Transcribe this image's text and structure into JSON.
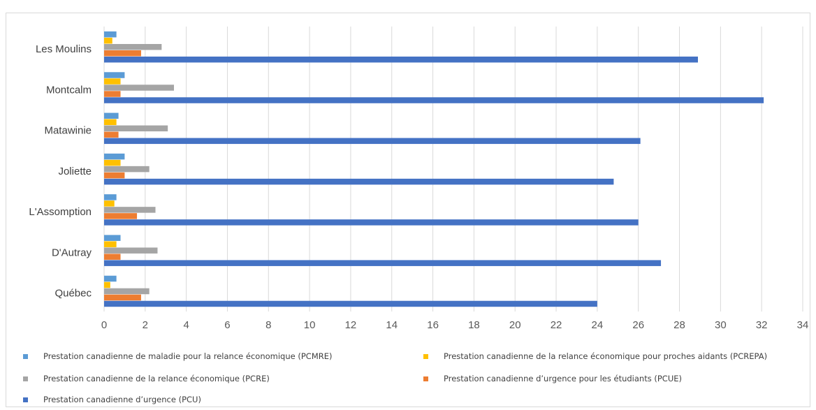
{
  "chart_data": {
    "type": "bar",
    "orientation": "horizontal",
    "title": "",
    "categories": [
      "Québec",
      "D'Autray",
      "L'Assomption",
      "Joliette",
      "Matawinie",
      "Montcalm",
      "Les Moulins"
    ],
    "xlim": [
      0,
      34
    ],
    "xticks": [
      "0",
      "2",
      "4",
      "6",
      "8",
      "10",
      "12",
      "14",
      "16",
      "18",
      "20",
      "22",
      "24",
      "26",
      "28",
      "30",
      "32",
      "34"
    ],
    "grid": "vertical",
    "legend_position": "bottom",
    "series": [
      {
        "name": "Prestation canadienne de maladie pour la relance économique (PCMRE)",
        "color": "#5b9bd5",
        "values": [
          0.6,
          0.8,
          0.6,
          1.0,
          0.7,
          1.0,
          0.6
        ]
      },
      {
        "name": "Prestation canadienne de la relance économique pour proches aidants (PCREPA)",
        "color": "#ffc000",
        "values": [
          0.3,
          0.6,
          0.5,
          0.8,
          0.6,
          0.8,
          0.4
        ]
      },
      {
        "name": "Prestation canadienne de la relance économique (PCRE)",
        "color": "#a5a5a5",
        "values": [
          2.2,
          2.6,
          2.5,
          2.2,
          3.1,
          3.4,
          2.8
        ]
      },
      {
        "name": "Prestation canadienne d’urgence pour les étudiants (PCUE)",
        "color": "#ed7d31",
        "values": [
          1.8,
          0.8,
          1.6,
          1.0,
          0.7,
          0.8,
          1.8
        ]
      },
      {
        "name": "Prestation canadienne d’urgence (PCU)",
        "color": "#4472c4",
        "values": [
          24.0,
          27.1,
          26.0,
          24.8,
          26.1,
          32.1,
          28.9
        ]
      }
    ]
  }
}
